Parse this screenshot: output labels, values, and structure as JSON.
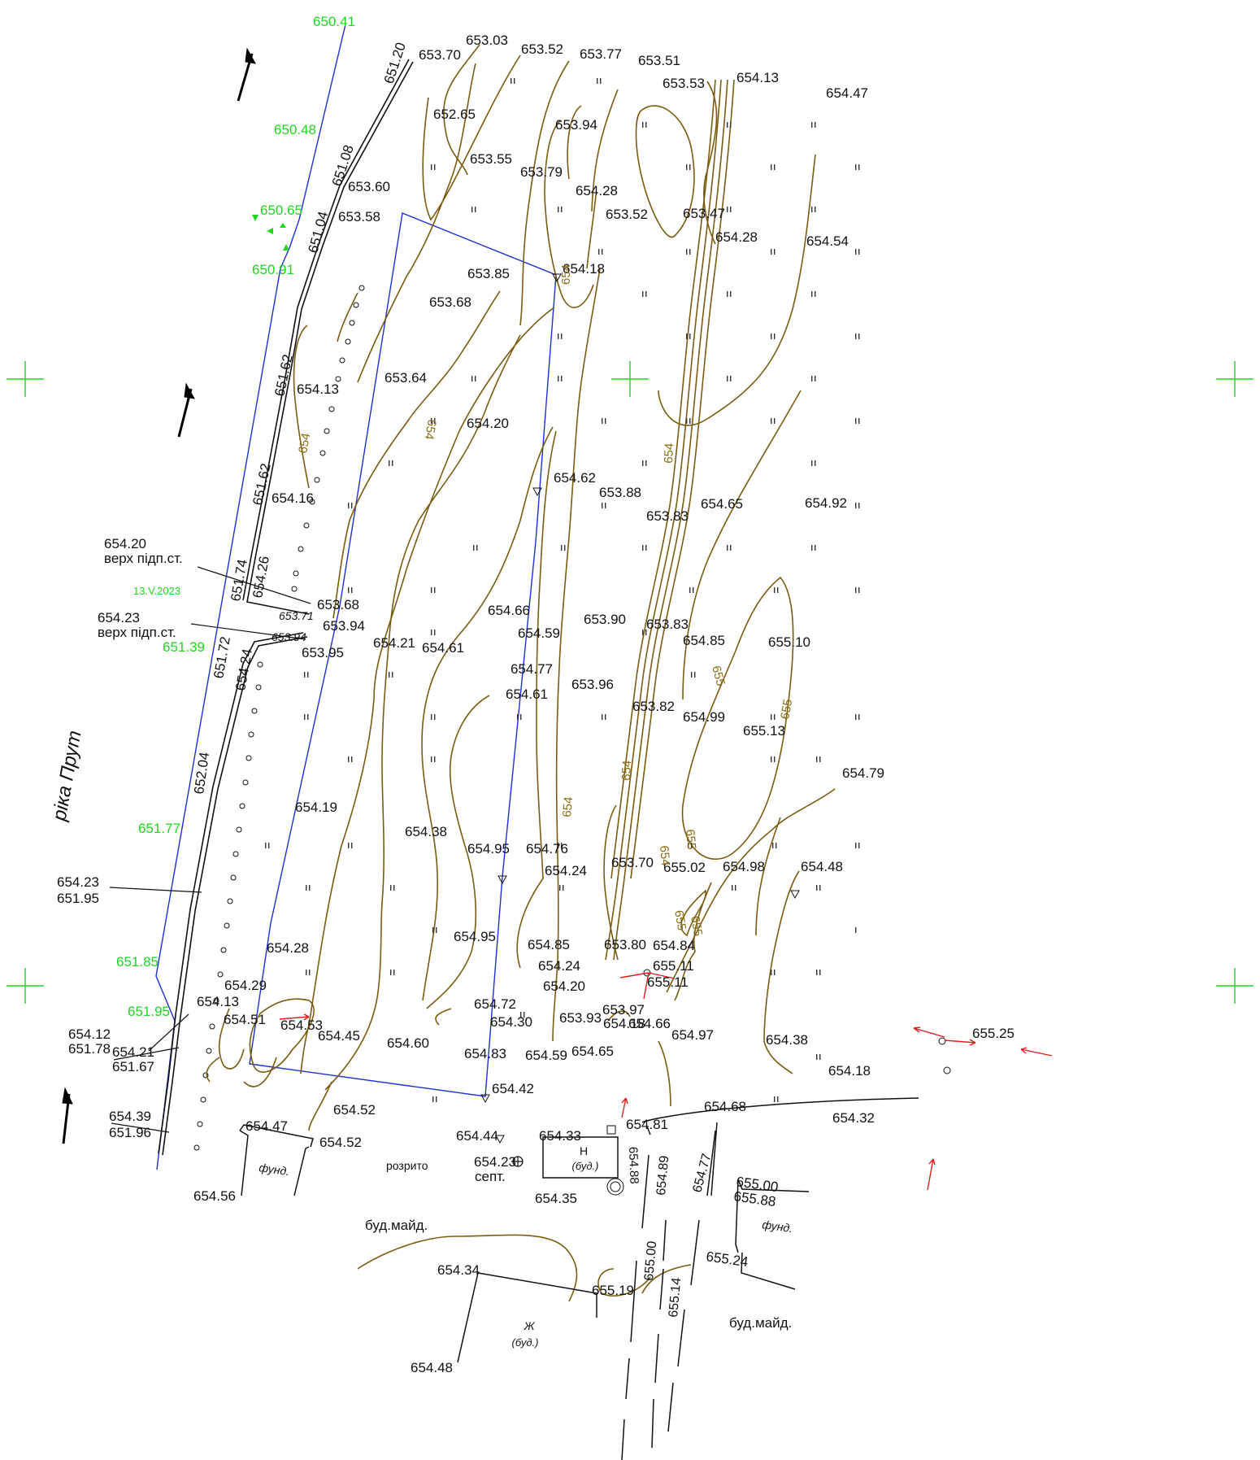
{
  "map": {
    "river_label": "ріка Прут",
    "date_label": "13.V.2023",
    "annotations": [
      {
        "name": "support-wall-top-1",
        "value": "654.20",
        "desc": "верх підп.ст."
      },
      {
        "name": "support-wall-top-2",
        "value": "654.23",
        "desc": "верх підп.ст."
      },
      {
        "name": "pair-1",
        "value": "654.23",
        "desc": "651.95"
      },
      {
        "name": "pair-2",
        "value": "654.12",
        "desc": "651.78"
      },
      {
        "name": "pair-3",
        "value": "654.21",
        "desc": "651.67"
      },
      {
        "name": "pair-4",
        "value": "654.39",
        "desc": "651.96"
      }
    ],
    "water_levels": [
      "650.41",
      "650.48",
      "650.65",
      "650.91",
      "651.39",
      "651.77",
      "651.85",
      "651.95"
    ],
    "wall_marks": [
      "651.20",
      "651.08",
      "651.04",
      "651.62",
      "651.62",
      "651.74",
      "654.26",
      "651.72",
      "654.24",
      "652.04",
      "653.71",
      "653.94"
    ],
    "elevations": [
      "653.70",
      "653.03",
      "653.52",
      "653.77",
      "653.51",
      "653.53",
      "654.13",
      "654.47",
      "652.65",
      "653.94",
      "653.55",
      "653.79",
      "653.60",
      "653.58",
      "654.28",
      "653.52",
      "653.47",
      "654.28",
      "654.54",
      "653.85",
      "654.18",
      "653.68",
      "654.13",
      "653.64",
      "654.20",
      "654.16",
      "654.62",
      "653.88",
      "653.83",
      "654.65",
      "654.92",
      "653.68",
      "653.94",
      "653.95",
      "654.66",
      "653.90",
      "654.59",
      "653.83",
      "654.21",
      "654.61",
      "654.85",
      "655.10",
      "654.77",
      "654.61",
      "653.96",
      "653.82",
      "654.99",
      "655.13",
      "654.79",
      "654.19",
      "654.38",
      "654.95",
      "654.76",
      "654.24",
      "653.70",
      "655.02",
      "654.98",
      "654.48",
      "654.95",
      "654.85",
      "653.80",
      "654.84",
      "654.24",
      "655.11",
      "654.28",
      "654.20",
      "655.11",
      "654.29",
      "654.13",
      "654.72",
      "653.97",
      "654.51",
      "654.53",
      "654.45",
      "654.30",
      "653.93",
      "654.18",
      "654.66",
      "654.97",
      "654.38",
      "655.25",
      "654.60",
      "654.83",
      "654.59",
      "654.65",
      "654.18",
      "654.42",
      "654.52",
      "654.68",
      "654.32",
      "654.47",
      "654.52",
      "654.81",
      "654.44",
      "654.33",
      "654.23",
      "654.56",
      "654.35",
      "655.00",
      "655.88",
      "655.24",
      "654.34",
      "655.19",
      "654.48"
    ],
    "vertical_marks": [
      "654.88",
      "654.89",
      "654.77",
      "655.00",
      "655.14"
    ],
    "contour_labels": [
      "654",
      "654",
      "654",
      "654",
      "654",
      "654",
      "654",
      "655",
      "655",
      "655",
      "655",
      "655"
    ],
    "objects": {
      "foundation_1": "фунд.",
      "foundation_2": "фунд.",
      "dug": "розрито",
      "septic": "септ.",
      "building_n": "Н",
      "building_n_sub": "(буд.)",
      "building_zh": "Ж",
      "building_zh_sub": "(буд.)",
      "construction_site_1": "буд.майд.",
      "construction_site_2": "буд.майд."
    },
    "grass_symbol": "ıı",
    "colors": {
      "contour": "#7a5c10",
      "boundary": "#1f2fd6",
      "water_level_text": "#1ed61e",
      "grid_cross": "#1ed61e",
      "arrows": "#e02020"
    }
  }
}
